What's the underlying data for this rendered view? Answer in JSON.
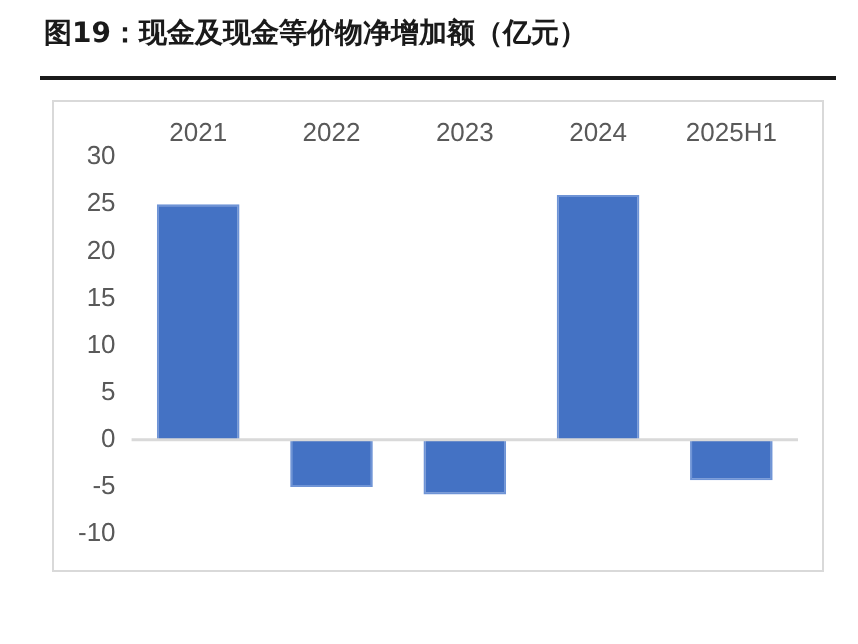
{
  "chart_data": {
    "type": "bar",
    "title": "图19：现金及现金等价物净增加额（亿元）",
    "categories": [
      "2021",
      "2022",
      "2023",
      "2024",
      "2025H1"
    ],
    "values": [
      25.0,
      -5.0,
      -5.8,
      26.0,
      -4.3
    ],
    "color": "#4472c4",
    "ylim": [
      -10,
      30
    ],
    "yticks": [
      -10,
      -5,
      0,
      5,
      10,
      15,
      20,
      25,
      30
    ],
    "grid": false,
    "legend": false,
    "ref_lines": [
      {
        "axis": "y",
        "value": 0,
        "color": "#d9d9d9"
      }
    ]
  }
}
